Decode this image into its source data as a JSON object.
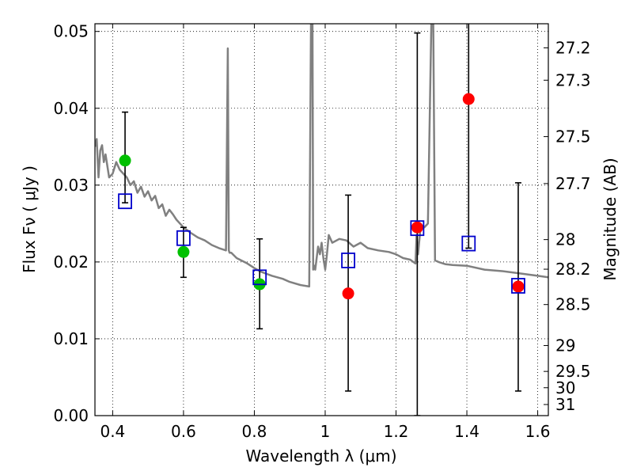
{
  "chart_data": {
    "type": "scatter",
    "title": "",
    "xlabel": "Wavelength  λ (μm)",
    "ylabel": "Flux  Fν  ( μJy )",
    "y2label": "Magnitude (AB)",
    "xlim": [
      0.35,
      1.63
    ],
    "ylim": [
      0.0,
      0.051
    ],
    "x_ticks": [
      0.4,
      0.6,
      0.8,
      1.0,
      1.2,
      1.4,
      1.6
    ],
    "x_tick_labels": [
      "0.4",
      "0.6",
      "0.8",
      "1",
      "1.2",
      "1.4",
      "1.6"
    ],
    "y_ticks": [
      0.0,
      0.01,
      0.02,
      0.03,
      0.04,
      0.05
    ],
    "y_tick_labels": [
      "0.00",
      "0.01",
      "0.02",
      "0.03",
      "0.04",
      "0.05"
    ],
    "mag_ticks": [
      27.2,
      27.3,
      27.5,
      27.7,
      28,
      28.2,
      28.5,
      29,
      29.5,
      30,
      31
    ],
    "mag_tick_labels": [
      "27.2",
      "27.3",
      "27.5",
      "27.7",
      "28",
      "28.2",
      "28.5",
      "29",
      "29.5",
      "30",
      "31"
    ],
    "grid": true,
    "colors": {
      "sed": "#808080",
      "green": "#00c000",
      "red": "#ff0000",
      "model": "#0000cc",
      "errorbar": "#000000"
    },
    "sed_model": {
      "x": [
        0.35,
        0.355,
        0.36,
        0.365,
        0.37,
        0.375,
        0.38,
        0.39,
        0.4,
        0.41,
        0.42,
        0.43,
        0.44,
        0.45,
        0.46,
        0.47,
        0.48,
        0.49,
        0.5,
        0.51,
        0.52,
        0.53,
        0.54,
        0.55,
        0.56,
        0.57,
        0.58,
        0.6,
        0.62,
        0.64,
        0.66,
        0.68,
        0.7,
        0.72,
        0.725,
        0.728,
        0.73,
        0.735,
        0.75,
        0.78,
        0.8,
        0.82,
        0.85,
        0.88,
        0.9,
        0.93,
        0.955,
        0.96,
        0.964,
        0.966,
        0.97,
        0.972,
        0.976,
        0.98,
        0.985,
        0.99,
        0.995,
        1.0,
        1.005,
        1.01,
        1.02,
        1.04,
        1.06,
        1.08,
        1.1,
        1.12,
        1.15,
        1.18,
        1.2,
        1.22,
        1.24,
        1.255,
        1.258,
        1.262,
        1.27,
        1.28,
        1.29,
        1.3,
        1.305,
        1.31,
        1.32,
        1.34,
        1.36,
        1.4,
        1.45,
        1.5,
        1.55,
        1.6,
        1.63
      ],
      "y": [
        0.035,
        0.036,
        0.031,
        0.0345,
        0.0352,
        0.033,
        0.034,
        0.031,
        0.0315,
        0.033,
        0.032,
        0.0315,
        0.031,
        0.03,
        0.0305,
        0.029,
        0.0298,
        0.0285,
        0.0292,
        0.028,
        0.0286,
        0.027,
        0.0275,
        0.026,
        0.0268,
        0.0262,
        0.0255,
        0.0245,
        0.0238,
        0.0232,
        0.0228,
        0.0222,
        0.0218,
        0.0215,
        0.0478,
        0.0215,
        0.0212,
        0.0212,
        0.0205,
        0.0198,
        0.0192,
        0.0187,
        0.0182,
        0.0178,
        0.0174,
        0.017,
        0.0168,
        0.052,
        0.052,
        0.019,
        0.0195,
        0.019,
        0.0205,
        0.022,
        0.021,
        0.0225,
        0.0205,
        0.019,
        0.021,
        0.0235,
        0.0225,
        0.023,
        0.0228,
        0.022,
        0.0225,
        0.0218,
        0.0215,
        0.0213,
        0.021,
        0.0205,
        0.0203,
        0.0198,
        0.0235,
        0.021,
        0.0248,
        0.0245,
        0.025,
        0.052,
        0.052,
        0.0202,
        0.02,
        0.0197,
        0.0196,
        0.0195,
        0.019,
        0.0188,
        0.0185,
        0.0182,
        0.018
      ]
    },
    "series": [
      {
        "marker": "circle-green",
        "x": [
          0.435,
          0.6,
          0.815
        ],
        "y": [
          0.0332,
          0.0213,
          0.0171
        ],
        "yerr_low": [
          0.0277,
          0.018,
          0.0113
        ],
        "yerr_high": [
          0.0395,
          0.0245,
          0.023
        ]
      },
      {
        "marker": "circle-red",
        "x": [
          1.065,
          1.26,
          1.405,
          1.545
        ],
        "y": [
          0.0159,
          0.0245,
          0.0412,
          0.0168
        ],
        "yerr_low": [
          0.0032,
          0.0,
          0.0218,
          0.0032
        ],
        "yerr_high": [
          0.0287,
          0.0498,
          0.0515,
          0.0303
        ]
      },
      {
        "marker": "square-blue",
        "x": [
          0.435,
          0.6,
          0.815,
          1.065,
          1.26,
          1.405,
          1.545
        ],
        "y": [
          0.0279,
          0.0231,
          0.018,
          0.0202,
          0.0244,
          0.0224,
          0.0169
        ]
      }
    ]
  }
}
